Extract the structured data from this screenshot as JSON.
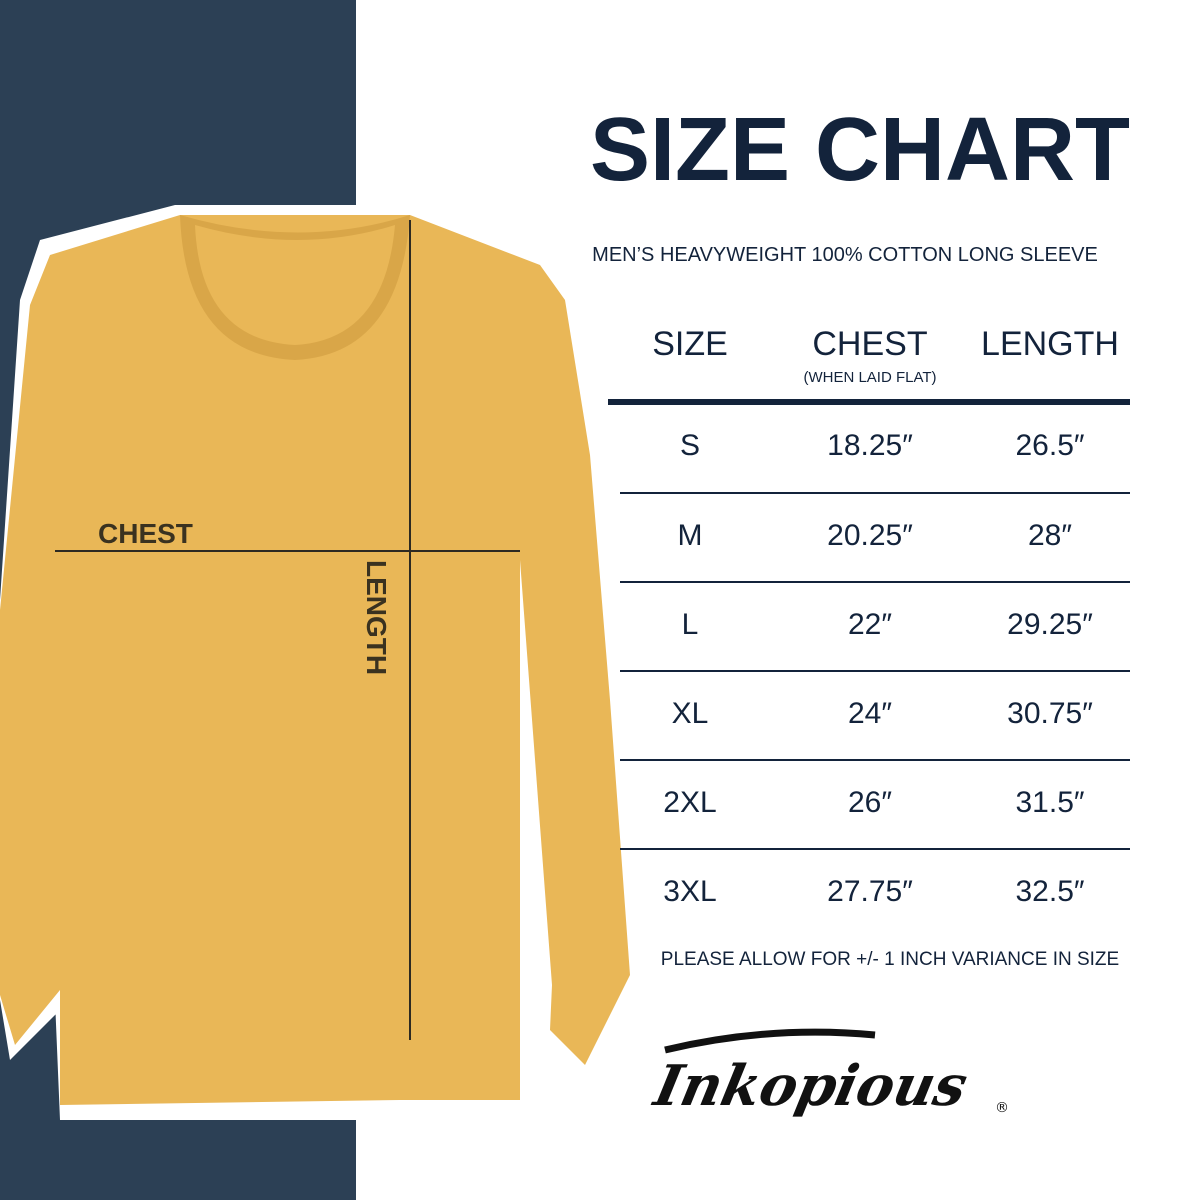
{
  "colors": {
    "navy_panel": "#2c4055",
    "text": "#13233b",
    "shirt": "#e9b757",
    "white": "#ffffff"
  },
  "title": "SIZE CHART",
  "subtitle": "MEN’S HEAVYWEIGHT 100% COTTON LONG SLEEVE",
  "table": {
    "headers": {
      "size": "SIZE",
      "chest": "CHEST",
      "chest_note": "(WHEN LAID FLAT)",
      "length": "LENGTH"
    },
    "rows": [
      {
        "size": "S",
        "chest": "18.25″",
        "length": "26.5″"
      },
      {
        "size": "M",
        "chest": "20.25″",
        "length": "28″"
      },
      {
        "size": "L",
        "chest": "22″",
        "length": "29.25″"
      },
      {
        "size": "XL",
        "chest": "24″",
        "length": "30.75″"
      },
      {
        "size": "2XL",
        "chest": "26″",
        "length": "31.5″"
      },
      {
        "size": "3XL",
        "chest": "27.75″",
        "length": "32.5″"
      }
    ]
  },
  "note": "PLEASE ALLOW FOR +/- 1 INCH VARIANCE IN SIZE",
  "shirt_labels": {
    "chest": "CHEST",
    "length": "LENGTH"
  },
  "logo": {
    "text": "Inkopious",
    "mark": "®"
  }
}
